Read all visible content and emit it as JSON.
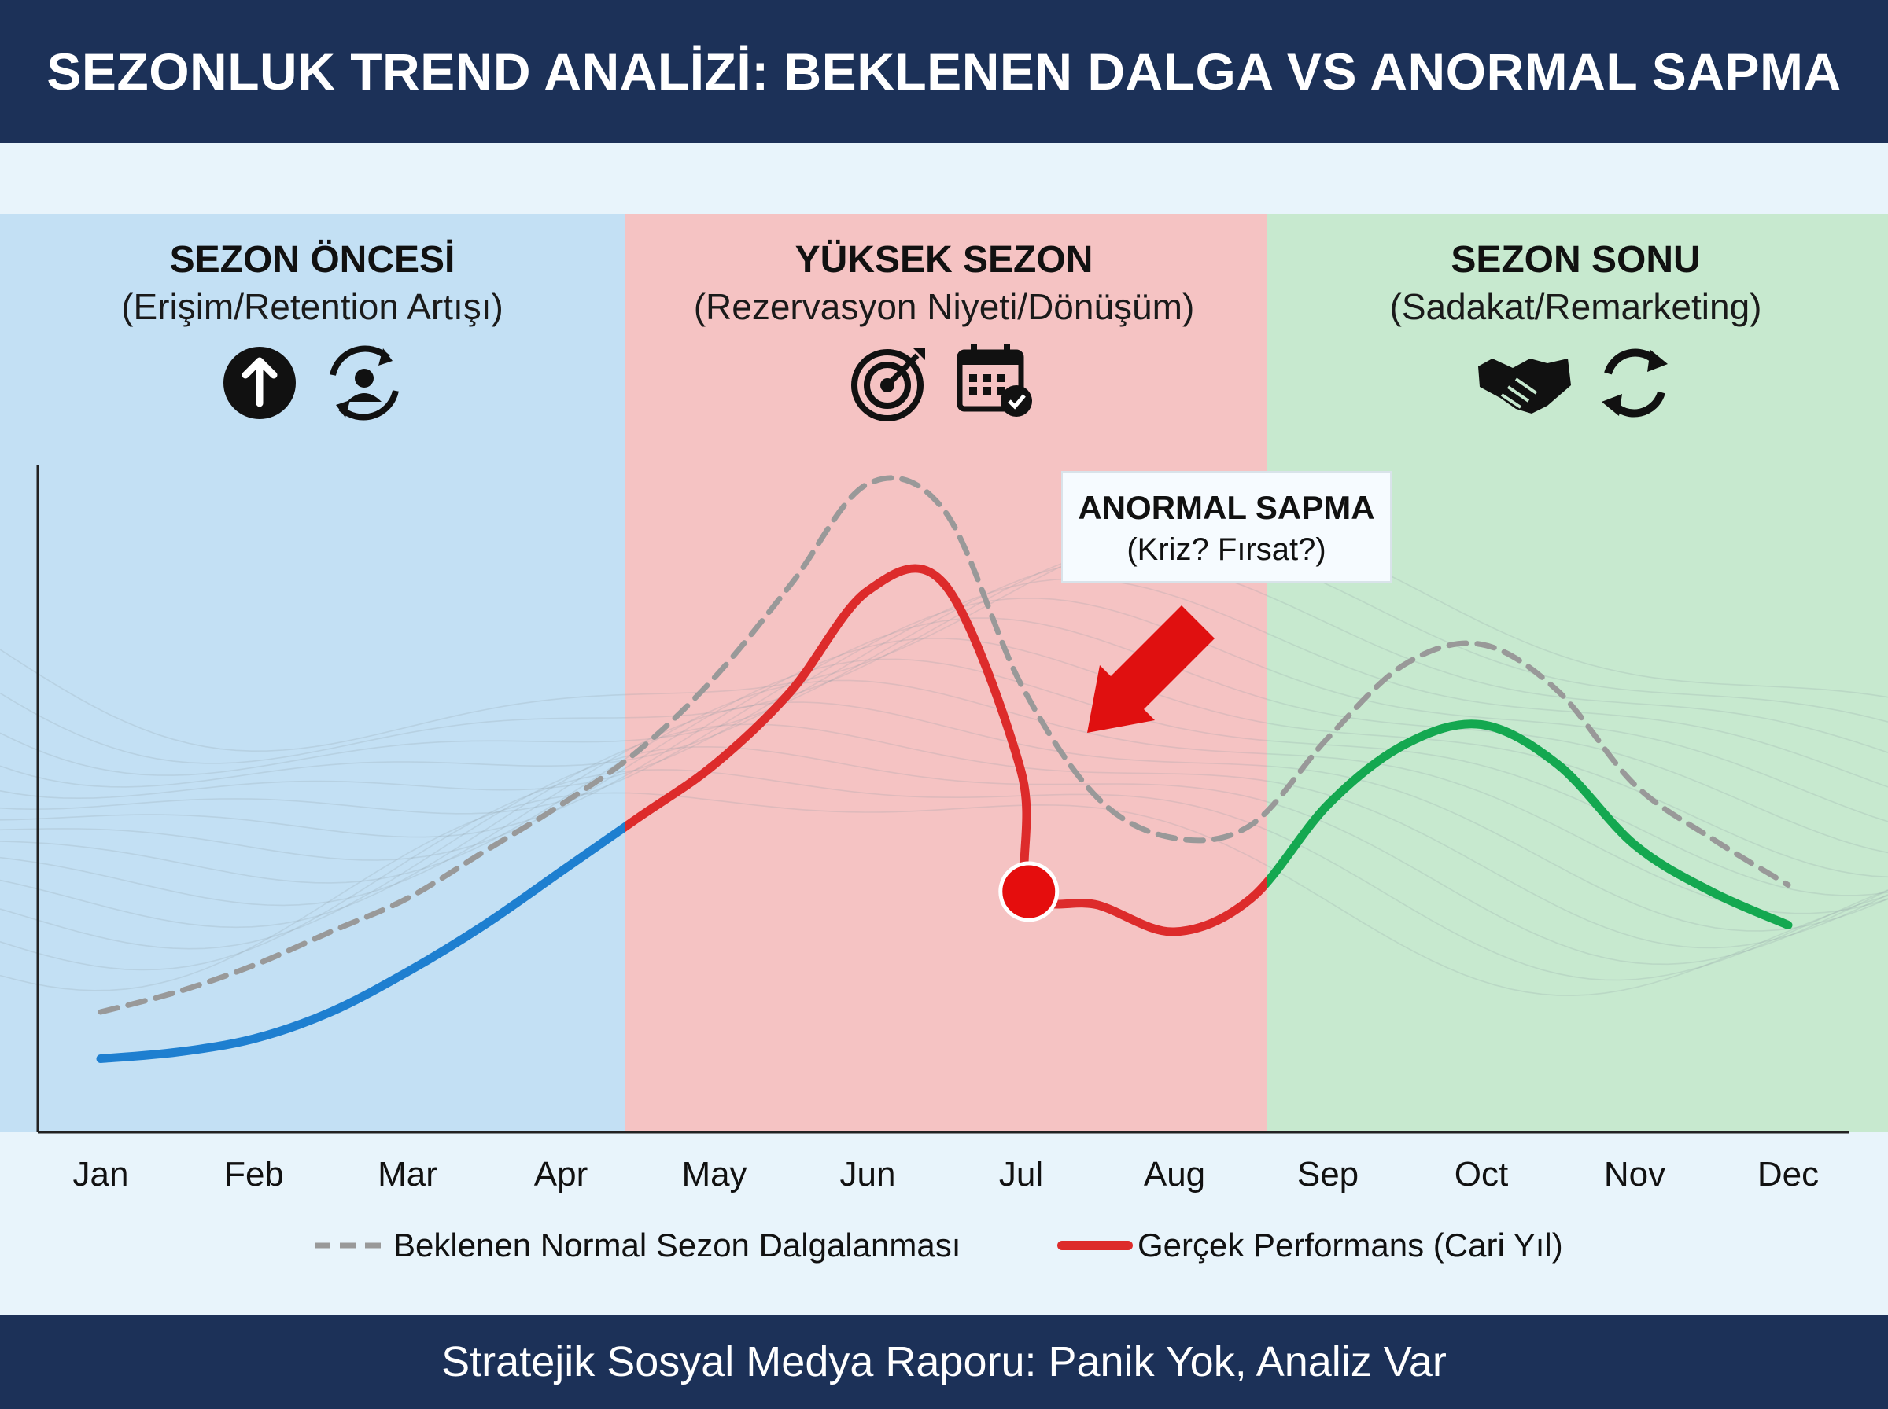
{
  "header": {
    "title": "SEZONLUK TREND ANALİZİ: BEKLENEN DALGA VS ANORMAL SAPMA"
  },
  "footer": {
    "text": "Stratejik Sosyal Medya Raporu: Panik Yok, Analiz Var"
  },
  "seasons": [
    {
      "title": "SEZON ÖNCESİ",
      "subtitle": "(Erişim/Retention Artışı)",
      "color": "#c3e0f4",
      "start": "Jan",
      "end": "Apr",
      "icons": [
        "arrow-up-circle-icon",
        "user-sync-icon"
      ]
    },
    {
      "title": "YÜKSEK SEZON",
      "subtitle": "(Rezervasyon Niyeti/Dönüşüm)",
      "color": "#f5c3c3",
      "start": "Apr",
      "end": "Aug",
      "icons": [
        "target-icon",
        "calendar-check-icon"
      ]
    },
    {
      "title": "SEZON SONU",
      "subtitle": "(Sadakat/Remarketing)",
      "color": "#c7e9cf",
      "start": "Aug",
      "end": "Dec",
      "icons": [
        "handshake-icon",
        "refresh-icon"
      ]
    }
  ],
  "annotation": {
    "title": "ANORMAL SAPMA",
    "subtitle": "(Kriz? Fırsat?)",
    "at_month": 6.05,
    "at_value": 36
  },
  "colors": {
    "expected": "#999999",
    "pre": "#1e7fd0",
    "peak": "#dd2b2b",
    "post": "#14a850",
    "marker": "#e50d0d"
  },
  "chart_data": {
    "type": "line",
    "categories": [
      "Jan",
      "Feb",
      "Mar",
      "Apr",
      "May",
      "Jun",
      "Jul",
      "Aug",
      "Sep",
      "Oct",
      "Nov",
      "Dec"
    ],
    "ylim": [
      0,
      100
    ],
    "grid": false,
    "legend_position": "bottom",
    "series": [
      {
        "name": "Beklenen Normal Sezon Dalgalanması",
        "style": "dashed",
        "x": [
          0,
          0.5,
          1,
          1.5,
          2,
          2.5,
          3,
          3.5,
          4,
          4.5,
          5,
          5.5,
          6,
          6.5,
          7,
          7.5,
          8,
          8.5,
          9,
          9.5,
          10,
          10.5,
          11
        ],
        "values": [
          18,
          21,
          25,
          30,
          35,
          42,
          49,
          57,
          68,
          82,
          97,
          93,
          67,
          50,
          44,
          46,
          59,
          70,
          73,
          66,
          52,
          44,
          37
        ]
      },
      {
        "name": "Gerçek Performans (Cari Yıl)",
        "style": "solid",
        "x": [
          0,
          0.5,
          1,
          1.5,
          2,
          2.5,
          3,
          3.5,
          4,
          4.5,
          5,
          5.5,
          6,
          6.05,
          6.5,
          7,
          7.5,
          8,
          8.5,
          9,
          9.5,
          10,
          10.5,
          11
        ],
        "values": [
          11,
          12,
          14,
          18,
          24,
          31,
          39,
          47,
          55,
          66,
          81,
          82,
          54,
          36,
          34,
          30,
          35,
          49,
          58,
          61,
          55,
          43,
          36,
          31
        ]
      }
    ]
  }
}
